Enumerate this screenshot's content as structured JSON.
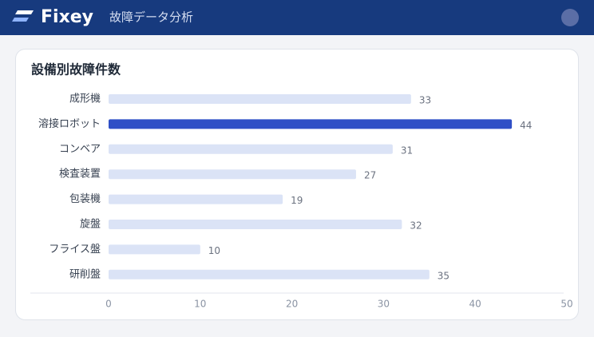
{
  "header": {
    "logo": "Fixey",
    "subtitle": "故障データ分析"
  },
  "chart_data": {
    "type": "bar",
    "orientation": "horizontal",
    "title": "設備別故障件数",
    "categories": [
      "成形機",
      "溶接ロボット",
      "コンベア",
      "検査装置",
      "包装機",
      "旋盤",
      "フライス盤",
      "研削盤"
    ],
    "values": [
      33,
      44,
      31,
      27,
      19,
      32,
      10,
      35
    ],
    "colors": [
      "#dbe3f6",
      "#2f4fc6",
      "#dbe3f6",
      "#dbe3f6",
      "#dbe3f6",
      "#dbe3f6",
      "#dbe3f6",
      "#dbe3f6"
    ],
    "xlim": [
      0,
      50
    ],
    "xticks": [
      0,
      10,
      20,
      30,
      40,
      50
    ],
    "grid": false
  }
}
